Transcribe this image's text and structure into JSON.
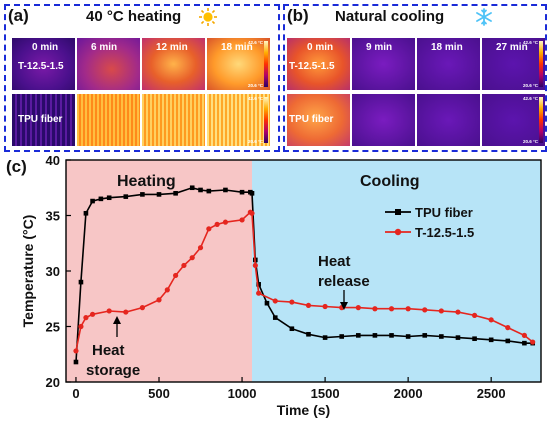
{
  "panel_a": {
    "label": "(a)",
    "title": "40 °C heating",
    "times": [
      "0 min",
      "6 min",
      "12 min",
      "18 min"
    ],
    "rows": [
      "T-12.5-1.5",
      "TPU fiber"
    ],
    "scale_max": "42.6 °C",
    "scale_min": "20.6 °C"
  },
  "panel_b": {
    "label": "(b)",
    "title": "Natural cooling",
    "times": [
      "0 min",
      "9 min",
      "18 min",
      "27 min"
    ],
    "rows": [
      "T-12.5-1.5",
      "TPU fiber"
    ],
    "scale_max": "42.6 °C",
    "scale_min": "20.6 °C"
  },
  "panel_c": {
    "label": "(c)",
    "region_heating": "Heating",
    "region_cooling": "Cooling",
    "annotation_storage": [
      "Heat",
      "storage"
    ],
    "annotation_release": [
      "Heat",
      "release"
    ]
  },
  "chart_data": {
    "type": "line",
    "xlabel": "Time (s)",
    "ylabel": "Temperature (°C)",
    "xlim": [
      -60,
      2800
    ],
    "ylim": [
      20,
      40
    ],
    "xticks": [
      0,
      500,
      1000,
      1500,
      2000,
      2500
    ],
    "yticks": [
      20,
      25,
      30,
      35,
      40
    ],
    "regions": [
      {
        "name": "Heating",
        "from": -60,
        "to": 1060,
        "color": "#f7c6c6"
      },
      {
        "name": "Cooling",
        "from": 1060,
        "to": 2800,
        "color": "#b7e4f7"
      }
    ],
    "legend_position": "right",
    "series": [
      {
        "name": "TPU fiber",
        "color": "#000000",
        "marker": "square",
        "x": [
          0,
          30,
          60,
          100,
          150,
          200,
          300,
          400,
          500,
          600,
          700,
          750,
          800,
          900,
          1000,
          1050,
          1060,
          1080,
          1100,
          1150,
          1200,
          1300,
          1400,
          1500,
          1600,
          1700,
          1800,
          1900,
          2000,
          2100,
          2200,
          2300,
          2400,
          2500,
          2600,
          2700,
          2750
        ],
        "y": [
          21.8,
          29,
          35.2,
          36.3,
          36.5,
          36.6,
          36.7,
          36.9,
          36.9,
          37.0,
          37.5,
          37.3,
          37.2,
          37.3,
          37.1,
          37.1,
          37.0,
          31,
          28.8,
          27.1,
          25.8,
          24.8,
          24.3,
          24.0,
          24.1,
          24.2,
          24.2,
          24.2,
          24.1,
          24.2,
          24.1,
          24.0,
          23.9,
          23.8,
          23.7,
          23.5,
          23.5
        ]
      },
      {
        "name": "T-12.5-1.5",
        "color": "#e5261f",
        "marker": "circle",
        "x": [
          0,
          30,
          60,
          100,
          200,
          300,
          400,
          500,
          550,
          600,
          650,
          700,
          750,
          800,
          850,
          900,
          1000,
          1050,
          1060,
          1080,
          1100,
          1200,
          1300,
          1400,
          1500,
          1600,
          1700,
          1800,
          1900,
          2000,
          2100,
          2200,
          2300,
          2400,
          2500,
          2600,
          2700,
          2750
        ],
        "y": [
          22.8,
          25,
          25.8,
          26.1,
          26.4,
          26.3,
          26.7,
          27.4,
          28.3,
          29.6,
          30.5,
          31.2,
          32.1,
          33.8,
          34.2,
          34.4,
          34.6,
          35.3,
          35.2,
          30.5,
          28.0,
          27.3,
          27.2,
          26.9,
          26.8,
          26.7,
          26.7,
          26.6,
          26.6,
          26.6,
          26.5,
          26.4,
          26.3,
          26.0,
          25.6,
          24.9,
          24.2,
          23.6
        ]
      }
    ]
  }
}
